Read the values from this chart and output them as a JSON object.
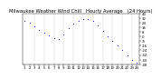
{
  "title": "Milwaukee Weather Wind Chill   Hourly Average   (24 Hours)",
  "hours": [
    1,
    2,
    3,
    4,
    5,
    6,
    7,
    8,
    9,
    10,
    11,
    12,
    13,
    14,
    15,
    16,
    17,
    18,
    19,
    20,
    21,
    22,
    23,
    24
  ],
  "wind_chill": [
    28,
    24,
    18,
    12,
    6,
    2,
    -2,
    -4,
    4,
    14,
    22,
    28,
    30,
    30,
    28,
    20,
    10,
    0,
    -8,
    -16,
    -24,
    -32,
    -40,
    -46
  ],
  "dot_color": "#0000dd",
  "grid_color": "#999999",
  "bg_color": "#ffffff",
  "ylim_min": -48,
  "ylim_max": 40,
  "ytick_step": 8,
  "yticks": [
    -48,
    -40,
    -32,
    -24,
    -16,
    -8,
    0,
    8,
    16,
    24,
    32,
    40
  ],
  "vgrid_hours": [
    3,
    5,
    7,
    9,
    11,
    13,
    15,
    17,
    19,
    21,
    23
  ],
  "title_fontsize": 3.8,
  "tick_fontsize": 2.8,
  "markersize": 1.6,
  "linewidth": 0.3
}
